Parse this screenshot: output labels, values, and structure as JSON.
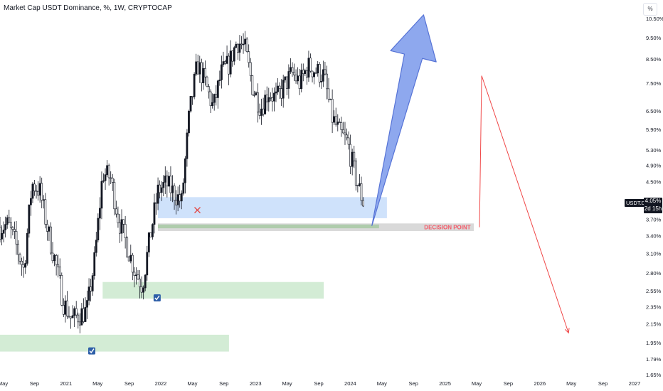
{
  "header": {
    "title": "Market Cap USDT Dominance, %, 1W, CRYPTOCAP",
    "scale_button": "%"
  },
  "price_tag": {
    "symbol": "USDT.D",
    "value": "4.05%",
    "countdown": "2d 15h",
    "value_num": 4.05
  },
  "annotation": {
    "decision_label": "DECISION POINT"
  },
  "colors": {
    "candle": "#131722",
    "zone_blue": "#cfe2fb",
    "zone_green": "#d3ecd5",
    "zone_gray": "#d9d9d9",
    "zone_darkgreen": "#a7c9a3",
    "arrow_blue": "#8ea8ee",
    "arrow_red": "#f04848",
    "check_bg": "#2e5fa8",
    "x_mark": "#e53935"
  },
  "chart_data": {
    "type": "candlestick",
    "y_scale": "log",
    "ylim": [
      1.65,
      10.5
    ],
    "y_ticks": [
      "10.50%",
      "9.50%",
      "8.50%",
      "7.50%",
      "6.50%",
      "5.90%",
      "5.30%",
      "4.90%",
      "4.50%",
      "4.05%",
      "3.70%",
      "3.40%",
      "3.10%",
      "2.80%",
      "2.55%",
      "2.35%",
      "2.15%",
      "1.95%",
      "1.79%",
      "1.65%"
    ],
    "y_tick_values": [
      10.5,
      9.5,
      8.5,
      7.5,
      6.5,
      5.9,
      5.3,
      4.9,
      4.5,
      4.05,
      3.7,
      3.4,
      3.1,
      2.8,
      2.55,
      2.35,
      2.15,
      1.95,
      1.79,
      1.65
    ],
    "x_ticks": [
      "May",
      "Sep",
      "2021",
      "May",
      "Sep",
      "2022",
      "May",
      "Sep",
      "2023",
      "May",
      "Sep",
      "2024",
      "May",
      "Sep",
      "2025",
      "May",
      "Sep",
      "2026",
      "May",
      "Sep",
      "2027"
    ],
    "x_tick_dates": [
      "2020-05",
      "2020-09",
      "2021-01",
      "2021-05",
      "2021-09",
      "2022-01",
      "2022-05",
      "2022-09",
      "2023-01",
      "2023-05",
      "2023-09",
      "2024-01",
      "2024-05",
      "2024-09",
      "2025-01",
      "2025-05",
      "2025-09",
      "2026-01",
      "2026-05",
      "2026-09",
      "2027-01"
    ],
    "price_path": [
      [
        "2020-05",
        3.55
      ],
      [
        "2020-06",
        3.6
      ],
      [
        "2020-07",
        3.25
      ],
      [
        "2020-08",
        2.85
      ],
      [
        "2020-09",
        4.45
      ],
      [
        "2020-10",
        4.3
      ],
      [
        "2020-11",
        3.5
      ],
      [
        "2020-12",
        2.95
      ],
      [
        "2021-01",
        2.4
      ],
      [
        "2021-02",
        2.2
      ],
      [
        "2021-03",
        2.25
      ],
      [
        "2021-04",
        2.3
      ],
      [
        "2021-05",
        3.0
      ],
      [
        "2021-06",
        4.7
      ],
      [
        "2021-07",
        4.6
      ],
      [
        "2021-08",
        3.7
      ],
      [
        "2021-09",
        3.25
      ],
      [
        "2021-10",
        2.85
      ],
      [
        "2021-11",
        2.62
      ],
      [
        "2021-12",
        3.4
      ],
      [
        "2022-01",
        4.3
      ],
      [
        "2022-02",
        4.45
      ],
      [
        "2022-03",
        4.25
      ],
      [
        "2022-04",
        4.05
      ],
      [
        "2022-05",
        6.4
      ],
      [
        "2022-06",
        8.3
      ],
      [
        "2022-07",
        7.5
      ],
      [
        "2022-08",
        6.6
      ],
      [
        "2022-09",
        7.9
      ],
      [
        "2022-10",
        8.3
      ],
      [
        "2022-11",
        9.35
      ],
      [
        "2022-12",
        9.0
      ],
      [
        "2023-01",
        7.3
      ],
      [
        "2023-02",
        6.6
      ],
      [
        "2023-03",
        7.2
      ],
      [
        "2023-04",
        6.9
      ],
      [
        "2023-05",
        7.4
      ],
      [
        "2023-06",
        7.9
      ],
      [
        "2023-07",
        7.5
      ],
      [
        "2023-08",
        8.2
      ],
      [
        "2023-09",
        8.0
      ],
      [
        "2023-10",
        7.8
      ],
      [
        "2023-11",
        6.3
      ],
      [
        "2023-12",
        5.8
      ],
      [
        "2024-01",
        5.5
      ],
      [
        "2024-02",
        4.6
      ],
      [
        "2024-03",
        4.05
      ]
    ],
    "zones": [
      {
        "from": "2022-01",
        "to": "2024-06",
        "low": 3.72,
        "high": 4.15,
        "color": "blue",
        "marker": "x"
      },
      {
        "from": "2022-01",
        "to": "2025-05",
        "low": 3.48,
        "high": 3.62,
        "color": "gray"
      },
      {
        "from": "2022-01",
        "to": "2024-05",
        "low": 3.53,
        "high": 3.6,
        "color": "darkgreen"
      },
      {
        "from": "2021-06",
        "to": "2023-10",
        "low": 2.45,
        "high": 2.67,
        "color": "green",
        "marker": "check"
      },
      {
        "from": "2020-05",
        "to": "2022-10",
        "low": 1.86,
        "high": 2.03,
        "color": "green",
        "marker": "check"
      }
    ],
    "projections": [
      {
        "name": "bullish",
        "color": "blue",
        "path": [
          [
            "2024-05",
            3.58
          ],
          [
            "2024-11",
            10.7
          ]
        ]
      },
      {
        "name": "bearish",
        "color": "red",
        "path": [
          [
            "2025-05",
            3.55
          ],
          [
            "2025-06",
            7.8
          ],
          [
            "2026-05",
            2.05
          ]
        ]
      }
    ]
  }
}
